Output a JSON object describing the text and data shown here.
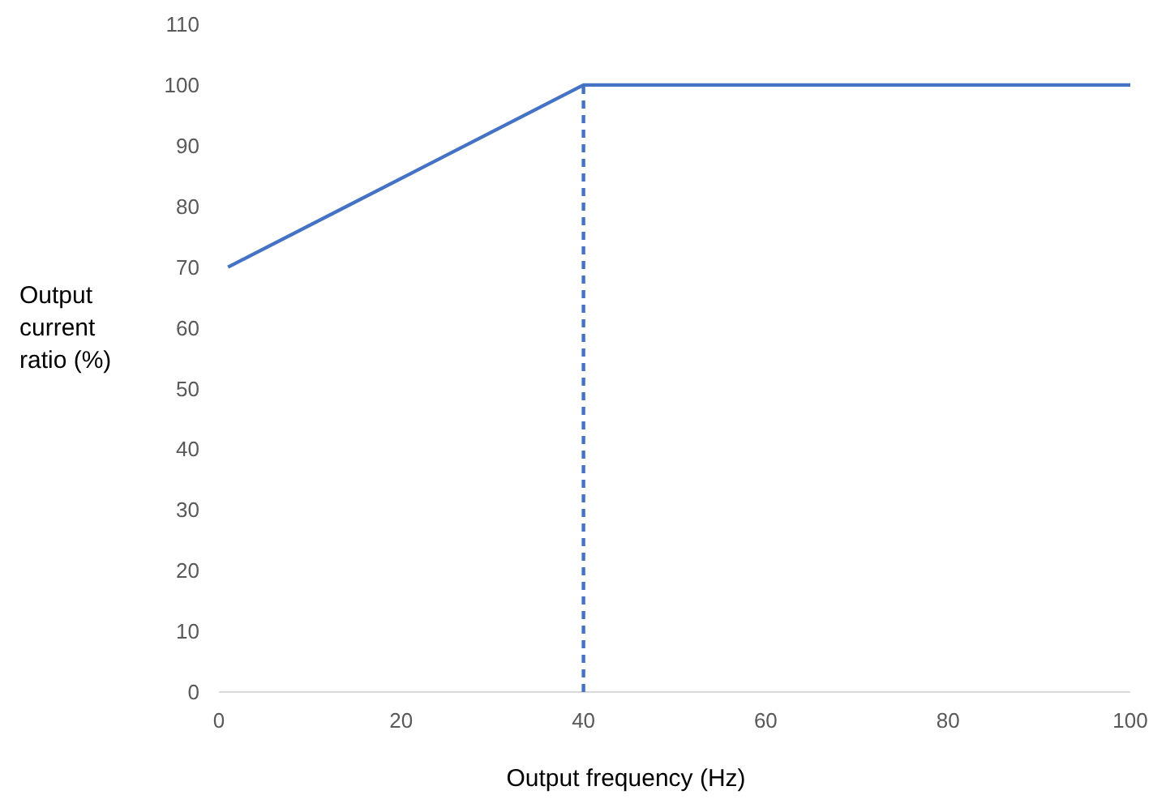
{
  "chart_data": {
    "type": "line",
    "xlabel": "Output frequency (Hz)",
    "ylabel": "Output current ratio (%)",
    "xlim": [
      0,
      100
    ],
    "xticks": [
      0,
      20,
      40,
      60,
      80,
      100
    ],
    "ylim": [
      0,
      110
    ],
    "yticks": [
      0,
      10,
      20,
      30,
      40,
      50,
      60,
      70,
      80,
      90,
      100,
      110
    ],
    "grid": false,
    "marker": "none",
    "series": [
      {
        "color": "#4472c4",
        "x": [
          1,
          40,
          100
        ],
        "values": [
          70,
          100,
          100
        ],
        "line_style": "solid"
      },
      {
        "color": "#4472c4",
        "x": [
          40,
          40
        ],
        "values": [
          0,
          100
        ],
        "line_style": "dashed"
      }
    ]
  }
}
